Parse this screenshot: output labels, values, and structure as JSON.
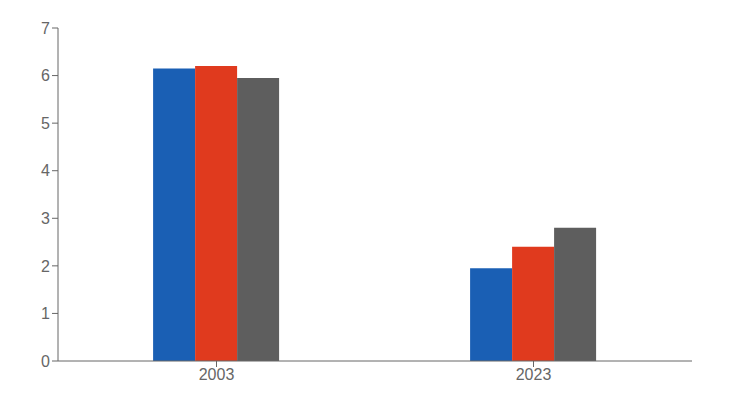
{
  "chart_data": {
    "type": "bar",
    "categories": [
      "2003",
      "2023"
    ],
    "series": [
      {
        "color": "#1a5fb4",
        "values": [
          6.15,
          1.95
        ]
      },
      {
        "color": "#e03a1e",
        "values": [
          6.2,
          2.4
        ]
      },
      {
        "color": "#5e5e5e",
        "values": [
          5.95,
          2.8
        ]
      }
    ],
    "ylim": [
      0,
      7
    ],
    "yticks": [
      0,
      1,
      2,
      3,
      4,
      5,
      6,
      7
    ],
    "grid": false
  }
}
